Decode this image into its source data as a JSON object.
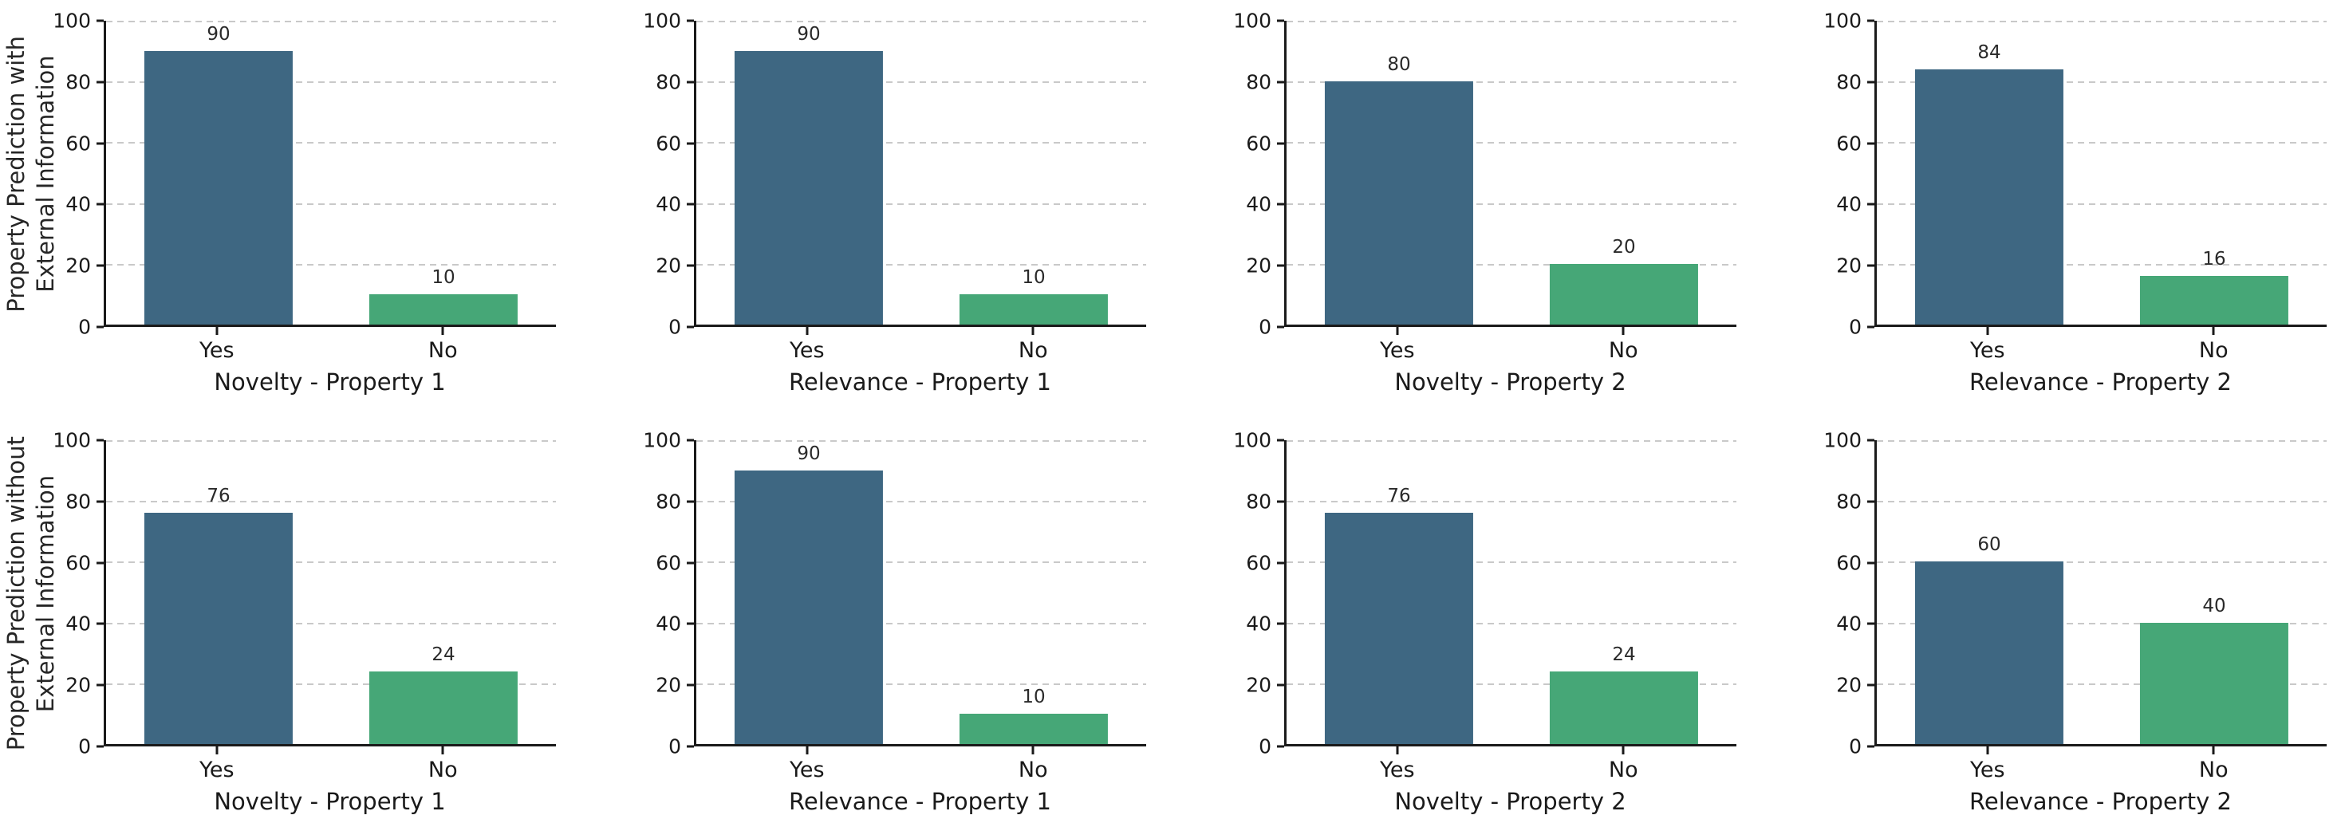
{
  "figure": {
    "background": "#ffffff",
    "rows": [
      {
        "ylabel": [
          "Property Prediction with",
          "External Information"
        ]
      },
      {
        "ylabel": [
          "Property Prediction without",
          "External Information"
        ]
      }
    ]
  },
  "palette": {
    "yes_bar": "#3e6782",
    "no_bar": "#46a777",
    "grid": "#c9c9c9",
    "axis": "#1a1a1a",
    "text": "#1f1f1f"
  },
  "chart_data": [
    {
      "type": "bar",
      "row": 1,
      "col": 1,
      "categories": [
        "Yes",
        "No"
      ],
      "values": [
        90,
        10
      ],
      "xlabel": "Novelty - Property 1",
      "ylabel": "Property Prediction with External Information",
      "ylim": [
        0,
        100
      ],
      "yticks": [
        0,
        20,
        40,
        60,
        80,
        100
      ],
      "grid": "horizontal-dashed",
      "legend": "none"
    },
    {
      "type": "bar",
      "row": 1,
      "col": 2,
      "categories": [
        "Yes",
        "No"
      ],
      "values": [
        90,
        10
      ],
      "xlabel": "Relevance - Property 1",
      "ylabel": "",
      "ylim": [
        0,
        100
      ],
      "yticks": [
        0,
        20,
        40,
        60,
        80,
        100
      ],
      "grid": "horizontal-dashed",
      "legend": "none"
    },
    {
      "type": "bar",
      "row": 1,
      "col": 3,
      "categories": [
        "Yes",
        "No"
      ],
      "values": [
        80,
        20
      ],
      "xlabel": "Novelty - Property 2",
      "ylabel": "",
      "ylim": [
        0,
        100
      ],
      "yticks": [
        0,
        20,
        40,
        60,
        80,
        100
      ],
      "grid": "horizontal-dashed",
      "legend": "none"
    },
    {
      "type": "bar",
      "row": 1,
      "col": 4,
      "categories": [
        "Yes",
        "No"
      ],
      "values": [
        84,
        16
      ],
      "xlabel": "Relevance - Property 2",
      "ylabel": "",
      "ylim": [
        0,
        100
      ],
      "yticks": [
        0,
        20,
        40,
        60,
        80,
        100
      ],
      "grid": "horizontal-dashed",
      "legend": "none"
    },
    {
      "type": "bar",
      "row": 2,
      "col": 1,
      "categories": [
        "Yes",
        "No"
      ],
      "values": [
        76,
        24
      ],
      "xlabel": "Novelty - Property 1",
      "ylabel": "Property Prediction without External Information",
      "ylim": [
        0,
        100
      ],
      "yticks": [
        0,
        20,
        40,
        60,
        80,
        100
      ],
      "grid": "horizontal-dashed",
      "legend": "none"
    },
    {
      "type": "bar",
      "row": 2,
      "col": 2,
      "categories": [
        "Yes",
        "No"
      ],
      "values": [
        90,
        10
      ],
      "xlabel": "Relevance - Property 1",
      "ylabel": "",
      "ylim": [
        0,
        100
      ],
      "yticks": [
        0,
        20,
        40,
        60,
        80,
        100
      ],
      "grid": "horizontal-dashed",
      "legend": "none"
    },
    {
      "type": "bar",
      "row": 2,
      "col": 3,
      "categories": [
        "Yes",
        "No"
      ],
      "values": [
        76,
        24
      ],
      "xlabel": "Novelty - Property 2",
      "ylabel": "",
      "ylim": [
        0,
        100
      ],
      "yticks": [
        0,
        20,
        40,
        60,
        80,
        100
      ],
      "grid": "horizontal-dashed",
      "legend": "none"
    },
    {
      "type": "bar",
      "row": 2,
      "col": 4,
      "categories": [
        "Yes",
        "No"
      ],
      "values": [
        60,
        40
      ],
      "xlabel": "Relevance - Property 2",
      "ylabel": "",
      "ylim": [
        0,
        100
      ],
      "yticks": [
        0,
        20,
        40,
        60,
        80,
        100
      ],
      "grid": "horizontal-dashed",
      "legend": "none"
    }
  ]
}
